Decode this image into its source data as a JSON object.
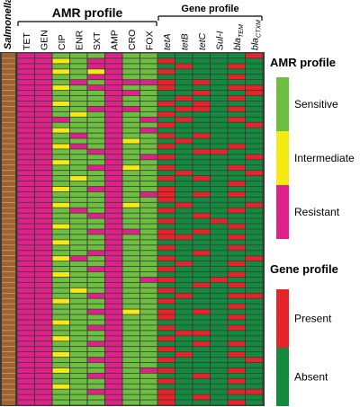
{
  "chart_data": {
    "type": "heatmap",
    "row_axis_label": "Salmonella",
    "group_titles": [
      "AMR profile",
      "Gene profile"
    ],
    "columns": [
      {
        "key": "TET",
        "label": "TET",
        "group": 0
      },
      {
        "key": "GEN",
        "label": "GEN",
        "group": 0
      },
      {
        "key": "CIP",
        "label": "CIP",
        "group": 0
      },
      {
        "key": "ENR",
        "label": "ENR",
        "group": 0
      },
      {
        "key": "SXT",
        "label": "SXT",
        "group": 0
      },
      {
        "key": "AMP",
        "label": "AMP",
        "group": 0
      },
      {
        "key": "CRO",
        "label": "CRO",
        "group": 0
      },
      {
        "key": "FOX",
        "label": "FOX",
        "group": 0
      },
      {
        "key": "tetA",
        "label": "tetA",
        "group": 1
      },
      {
        "key": "tetB",
        "label": "tetB",
        "group": 1
      },
      {
        "key": "tetC",
        "label": "tetC",
        "group": 1
      },
      {
        "key": "sulI",
        "label": "Sul-I",
        "group": 1
      },
      {
        "key": "blaTEM",
        "label": "bla",
        "subscript": "TEM",
        "group": 1
      },
      {
        "key": "blaCTXM",
        "label": "bla",
        "subscript": "CTXM",
        "group": 1
      }
    ],
    "n_rows": 66,
    "amr_codes": {
      "S": "Sensitive",
      "I": "Intermediate",
      "R": "Resistant"
    },
    "gene_codes": {
      "1": "Present",
      "0": "Absent"
    },
    "rows": [
      "RRSSSRSS000001",
      "RRISRRSS100000",
      "RRSSRRSS010010",
      "RRISIRSS100000",
      "RRSSRRSS000010",
      "RRSRSRRR101000",
      "RRISRRSS100011",
      "RRSSSRRS001001",
      "RRSSSRSS010010",
      "RRISSRSS101000",
      "RRSSRRRS011010",
      "RRSISRSS100000",
      "RRRSSRSR010010",
      "RRSSSRSS100001",
      "RRISSRSR000000",
      "RRSRSRSS101000",
      "RRSSSRIS010000",
      "RRIRSRSS100010",
      "RRSSRRSS001100",
      "RRSSSRSR100001",
      "RRISSRSS000000",
      "RRSSRRIS100010",
      "RRSSSRSS010001",
      "RRSISRSS101000",
      "RRSSSRSS000010",
      "RRISRRSS100000",
      "RRSSSRSR101010",
      "RRSSSRSS100000",
      "RRISSRIS010001",
      "RRSRSRSS100010",
      "RRSSRRSS001000",
      "RRSSSRSS100100",
      "RRISSRSS000010",
      "RRSSRRRS101000",
      "RRSSSRSS110010",
      "RRISSRSS000000",
      "RRSSSRSS100010",
      "RRSSRRSS001000",
      "RRIRSRSS100001",
      "RRSSSRSS010010",
      "RRSSRRSS100000",
      "RRISSRSS000010",
      "RRSSSRSR100100",
      "RRSSSRSS001010",
      "RRSISRSS100000",
      "RRSSRRSS010011",
      "RRISSRSS100000",
      "RRSSSRSS000010",
      "RRSSRRIS101000",
      "RRSSSRSS100010",
      "RRISSRSS000000",
      "RRSSRRSS100010",
      "RRSSSRSS011000",
      "RRISSRSS100000",
      "RRSSRRSS001010",
      "RRSSSRSS100000",
      "RRISSRSS010010",
      "RRSSRRSS100001",
      "RRSSSRSS000000",
      "RRISSRSR100010",
      "RRSSRRSS001000",
      "RRSSSRSS100010",
      "RRISSRSS000000",
      "RRSSRRSS100011",
      "RRSSSRSS101000",
      "RRSSSRSS100010"
    ],
    "legend": [
      {
        "title": "AMR profile",
        "items": [
          {
            "label": "Sensitive",
            "color": "#6cbf3f"
          },
          {
            "label": "Intermediate",
            "color": "#f5ea14"
          },
          {
            "label": "Resistant",
            "color": "#e0218a"
          }
        ]
      },
      {
        "title": "Gene profile",
        "items": [
          {
            "label": "Present",
            "color": "#e8242b"
          },
          {
            "label": "Absent",
            "color": "#148a3e"
          }
        ]
      }
    ],
    "colors": {
      "S": "#6cbf3f",
      "I": "#f5ea14",
      "R": "#e0218a",
      "present": "#e8242b",
      "absent": "#148a3e",
      "salmonella": "#a0632f",
      "grid": "#ffffff"
    }
  }
}
